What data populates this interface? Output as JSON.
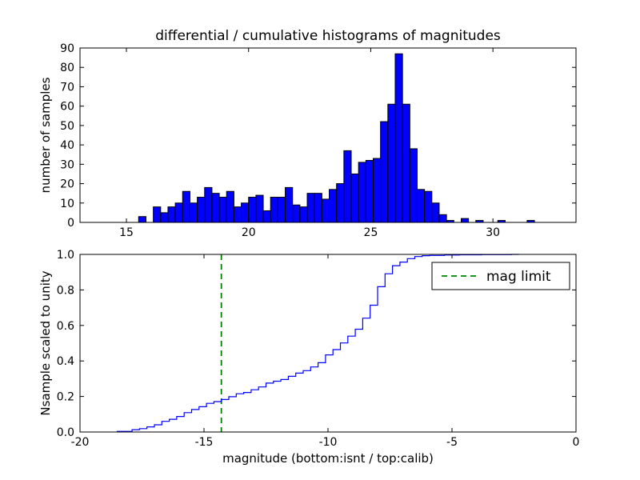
{
  "figure": {
    "background": "#ffffff"
  },
  "chart_data": [
    {
      "type": "bar",
      "subplot": "top",
      "title": "differential / cumulative histograms of magnitudes",
      "ylabel": "number of samples",
      "xlabel": "",
      "xlim": [
        13.1,
        33.4
      ],
      "ylim": [
        0,
        90
      ],
      "xticks": [
        15,
        20,
        25,
        30
      ],
      "yticks": [
        0,
        10,
        20,
        30,
        40,
        50,
        60,
        70,
        80,
        90
      ],
      "bin_start": 15.5,
      "bin_width": 0.3,
      "values": [
        3,
        0,
        8,
        5,
        8,
        10,
        16,
        10,
        13,
        18,
        15,
        13,
        16,
        8,
        10,
        13,
        14,
        6,
        13,
        13,
        18,
        9,
        8,
        15,
        15,
        12,
        17,
        20,
        37,
        25,
        31,
        32,
        33,
        52,
        61,
        87,
        61,
        38,
        17,
        16,
        10,
        4,
        1,
        0,
        2,
        0,
        1,
        0,
        0,
        1,
        0,
        0,
        0,
        1
      ],
      "bar_color": "#0000ff",
      "bar_edge_color": "#000000",
      "grid": false
    },
    {
      "type": "line",
      "subplot": "bottom",
      "ylabel": "Nsample scaled to unity",
      "xlabel": "magnitude (bottom:isnt / top:calib)",
      "xlim": [
        -20,
        0
      ],
      "ylim": [
        0,
        1.0
      ],
      "xticks": [
        -20,
        -15,
        -10,
        -5,
        0
      ],
      "yticks": [
        0.0,
        0.2,
        0.4,
        0.6,
        0.8,
        1.0
      ],
      "line_color": "#0000ff",
      "note": "cumulative sum of top histogram scaled to unity, plotted against instrumental magnitude",
      "x_offset_from_top": -34,
      "mag_limit": {
        "x": -14.3,
        "color": "#008000",
        "linestyle": "dashed",
        "label": "mag limit"
      },
      "legend": {
        "position": "upper right",
        "entries": [
          "mag limit"
        ]
      },
      "grid": false
    }
  ]
}
